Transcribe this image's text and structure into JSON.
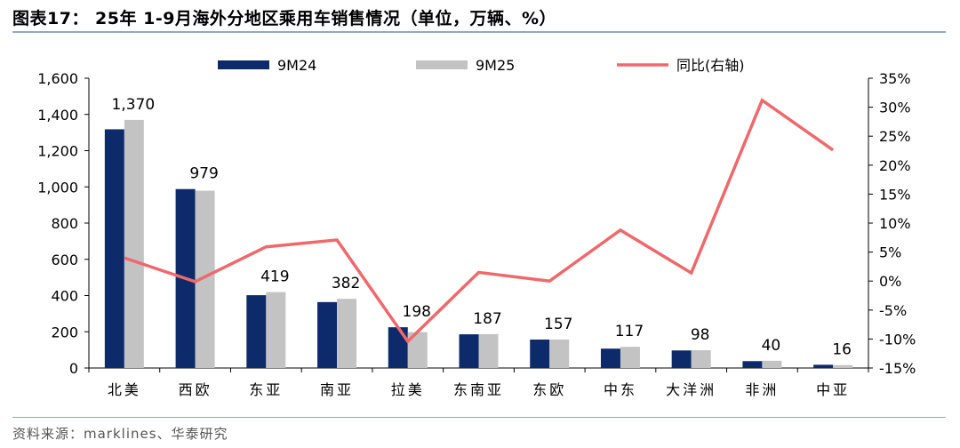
{
  "figure": {
    "title": "图表17： 25年 1-9月海外分地区乘用车销售情况（单位，万辆、%）",
    "source": "资料来源：marklines、华泰研究"
  },
  "chart_data": {
    "type": "bar",
    "categories": [
      "北美",
      "西欧",
      "东亚",
      "南亚",
      "拉美",
      "东南亚",
      "东欧",
      "中东",
      "大洋洲",
      "非洲",
      "中亚"
    ],
    "series": [
      {
        "name": "9M24",
        "type": "bar",
        "axis": "left",
        "color": "#0d2a6b",
        "values": [
          1318,
          988,
          402,
          364,
          225,
          186,
          157,
          107,
          97,
          38,
          18
        ]
      },
      {
        "name": "9M25",
        "type": "bar",
        "axis": "left",
        "color": "#c3c3c3",
        "values": [
          1370,
          979,
          419,
          382,
          198,
          187,
          157,
          117,
          98,
          40,
          16
        ]
      },
      {
        "name": "同比(右轴)",
        "type": "line",
        "axis": "right",
        "color": "#f0686b",
        "values": [
          4.0,
          -0.1,
          5.9,
          7.1,
          -10.4,
          1.5,
          0.0,
          8.8,
          1.4,
          31.2,
          22.6
        ]
      }
    ],
    "data_labels": [
      "1,370",
      "979",
      "419",
      "382",
      "198",
      "187",
      "157",
      "117",
      "98",
      "40",
      "16"
    ],
    "y_left": {
      "min": 0,
      "max": 1600,
      "step": 200,
      "ticks": [
        "0",
        "200",
        "400",
        "600",
        "800",
        "1,000",
        "1,200",
        "1,400",
        "1,600"
      ]
    },
    "y_right": {
      "min": -15,
      "max": 35,
      "step": 5,
      "ticks": [
        "-15%",
        "-10%",
        "-5%",
        "0%",
        "5%",
        "10%",
        "15%",
        "20%",
        "25%",
        "30%",
        "35%"
      ]
    },
    "legend_position": "top",
    "grid": false
  }
}
